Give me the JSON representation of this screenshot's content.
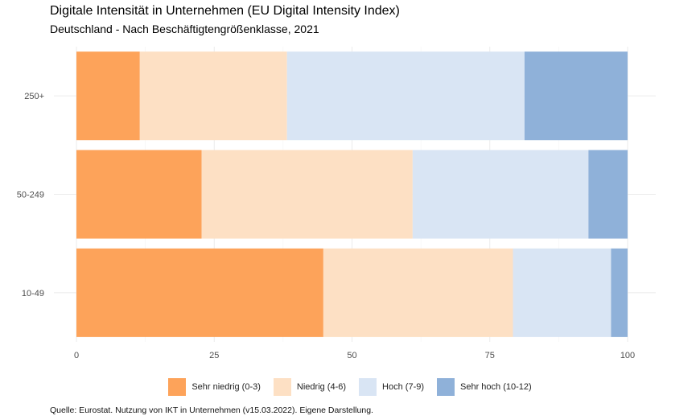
{
  "chart_data": {
    "type": "bar",
    "orientation": "horizontal",
    "stacked": true,
    "title": "Digitale Intensität in Unternehmen (EU Digital Intensity Index)",
    "subtitle": "Deutschland - Nach Beschäftigtengrößenklasse, 2021",
    "categories": [
      "250+",
      "50-249",
      "10-49"
    ],
    "series": [
      {
        "name": "Sehr niedrig (0-3)",
        "color": "#fda35a",
        "values": [
          11.5,
          22.7,
          44.8
        ]
      },
      {
        "name": "Niedrig (4-6)",
        "color": "#fde0c4",
        "values": [
          26.7,
          38.3,
          34.4
        ]
      },
      {
        "name": "Hoch (7-9)",
        "color": "#d9e5f4",
        "values": [
          43.1,
          31.9,
          17.8
        ]
      },
      {
        "name": "Sehr hoch (10-12)",
        "color": "#8fb1d9",
        "values": [
          18.7,
          7.1,
          3.0
        ]
      }
    ],
    "x_ticks": [
      "0",
      "25",
      "50",
      "75",
      "100"
    ],
    "xlim": [
      0,
      100
    ],
    "grid": true,
    "legend_position": "bottom",
    "source": "Quelle: Eurostat. Nutzung von IKT in Unternehmen (v15.03.2022). Eigene Darstellung."
  }
}
